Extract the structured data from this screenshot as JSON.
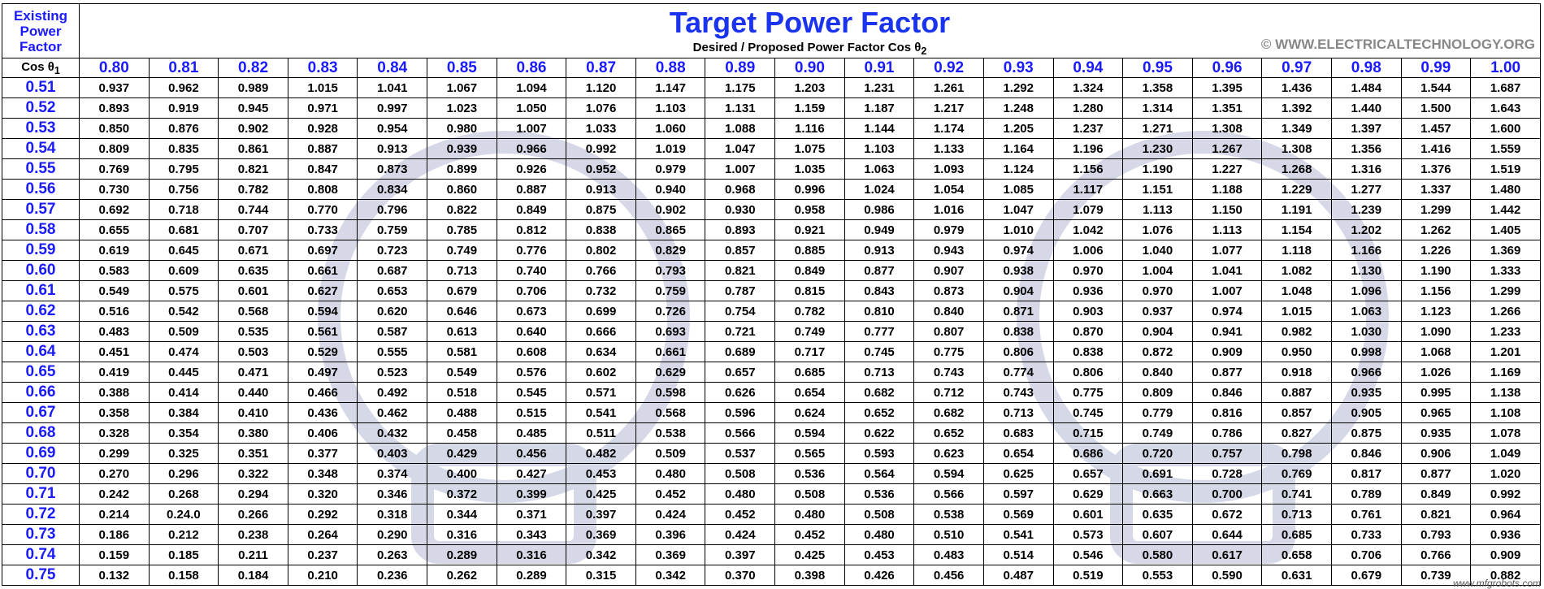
{
  "header": {
    "existing_label": "Existing Power Factor",
    "cos_label": "Cos θ",
    "cos_sub": "1",
    "title": "Target Power Factor",
    "subtitle": "Desired / Proposed Power Factor Cos θ",
    "subtitle_sub": "2",
    "copyright": "© WWW.ELECTRICALTECHNOLOGY.ORG"
  },
  "watermark": "www.mfgrobots.com",
  "table": {
    "columns": [
      "0.80",
      "0.81",
      "0.82",
      "0.83",
      "0.84",
      "0.85",
      "0.86",
      "0.87",
      "0.88",
      "0.89",
      "0.90",
      "0.91",
      "0.92",
      "0.93",
      "0.94",
      "0.95",
      "0.96",
      "0.97",
      "0.98",
      "0.99",
      "1.00"
    ],
    "row_headers": [
      "0.51",
      "0.52",
      "0.53",
      "0.54",
      "0.55",
      "0.56",
      "0.57",
      "0.58",
      "0.59",
      "0.60",
      "0.61",
      "0.62",
      "0.63",
      "0.64",
      "0.65",
      "0.66",
      "0.67",
      "0.68",
      "0.69",
      "0.70",
      "0.71",
      "0.72",
      "0.73",
      "0.74",
      "0.75"
    ],
    "rows": [
      [
        "0.937",
        "0.962",
        "0.989",
        "1.015",
        "1.041",
        "1.067",
        "1.094",
        "1.120",
        "1.147",
        "1.175",
        "1.203",
        "1.231",
        "1.261",
        "1.292",
        "1.324",
        "1.358",
        "1.395",
        "1.436",
        "1.484",
        "1.544",
        "1.687"
      ],
      [
        "0.893",
        "0.919",
        "0.945",
        "0.971",
        "0.997",
        "1.023",
        "1.050",
        "1.076",
        "1.103",
        "1.131",
        "1.159",
        "1.187",
        "1.217",
        "1.248",
        "1.280",
        "1.314",
        "1.351",
        "1.392",
        "1.440",
        "1.500",
        "1.643"
      ],
      [
        "0.850",
        "0.876",
        "0.902",
        "0.928",
        "0.954",
        "0.980",
        "1.007",
        "1.033",
        "1.060",
        "1.088",
        "1.116",
        "1.144",
        "1.174",
        "1.205",
        "1.237",
        "1.271",
        "1.308",
        "1.349",
        "1.397",
        "1.457",
        "1.600"
      ],
      [
        "0.809",
        "0.835",
        "0.861",
        "0.887",
        "0.913",
        "0.939",
        "0.966",
        "0.992",
        "1.019",
        "1.047",
        "1.075",
        "1.103",
        "1.133",
        "1.164",
        "1.196",
        "1.230",
        "1.267",
        "1.308",
        "1.356",
        "1.416",
        "1.559"
      ],
      [
        "0.769",
        "0.795",
        "0.821",
        "0.847",
        "0.873",
        "0.899",
        "0.926",
        "0.952",
        "0.979",
        "1.007",
        "1.035",
        "1.063",
        "1.093",
        "1.124",
        "1.156",
        "1.190",
        "1.227",
        "1.268",
        "1.316",
        "1.376",
        "1.519"
      ],
      [
        "0.730",
        "0.756",
        "0.782",
        "0.808",
        "0.834",
        "0.860",
        "0.887",
        "0.913",
        "0.940",
        "0.968",
        "0.996",
        "1.024",
        "1.054",
        "1.085",
        "1.117",
        "1.151",
        "1.188",
        "1.229",
        "1.277",
        "1.337",
        "1.480"
      ],
      [
        "0.692",
        "0.718",
        "0.744",
        "0.770",
        "0.796",
        "0.822",
        "0.849",
        "0.875",
        "0.902",
        "0.930",
        "0.958",
        "0.986",
        "1.016",
        "1.047",
        "1.079",
        "1.113",
        "1.150",
        "1.191",
        "1.239",
        "1.299",
        "1.442"
      ],
      [
        "0.655",
        "0.681",
        "0.707",
        "0.733",
        "0.759",
        "0.785",
        "0.812",
        "0.838",
        "0.865",
        "0.893",
        "0.921",
        "0.949",
        "0.979",
        "1.010",
        "1.042",
        "1.076",
        "1.113",
        "1.154",
        "1.202",
        "1.262",
        "1.405"
      ],
      [
        "0.619",
        "0.645",
        "0.671",
        "0.697",
        "0.723",
        "0.749",
        "0.776",
        "0.802",
        "0.829",
        "0.857",
        "0.885",
        "0.913",
        "0.943",
        "0.974",
        "1.006",
        "1.040",
        "1.077",
        "1.118",
        "1.166",
        "1.226",
        "1.369"
      ],
      [
        "0.583",
        "0.609",
        "0.635",
        "0.661",
        "0.687",
        "0.713",
        "0.740",
        "0.766",
        "0.793",
        "0.821",
        "0.849",
        "0.877",
        "0.907",
        "0.938",
        "0.970",
        "1.004",
        "1.041",
        "1.082",
        "1.130",
        "1.190",
        "1.333"
      ],
      [
        "0.549",
        "0.575",
        "0.601",
        "0.627",
        "0.653",
        "0.679",
        "0.706",
        "0.732",
        "0.759",
        "0.787",
        "0.815",
        "0.843",
        "0.873",
        "0.904",
        "0.936",
        "0.970",
        "1.007",
        "1.048",
        "1.096",
        "1.156",
        "1.299"
      ],
      [
        "0.516",
        "0.542",
        "0.568",
        "0.594",
        "0.620",
        "0.646",
        "0.673",
        "0.699",
        "0.726",
        "0.754",
        "0.782",
        "0.810",
        "0.840",
        "0.871",
        "0.903",
        "0.937",
        "0.974",
        "1.015",
        "1.063",
        "1.123",
        "1.266"
      ],
      [
        "0.483",
        "0.509",
        "0.535",
        "0.561",
        "0.587",
        "0.613",
        "0.640",
        "0.666",
        "0.693",
        "0.721",
        "0.749",
        "0.777",
        "0.807",
        "0.838",
        "0.870",
        "0.904",
        "0.941",
        "0.982",
        "1.030",
        "1.090",
        "1.233"
      ],
      [
        "0.451",
        "0.474",
        "0.503",
        "0.529",
        "0.555",
        "0.581",
        "0.608",
        "0.634",
        "0.661",
        "0.689",
        "0.717",
        "0.745",
        "0.775",
        "0.806",
        "0.838",
        "0.872",
        "0.909",
        "0.950",
        "0.998",
        "1.068",
        "1.201"
      ],
      [
        "0.419",
        "0.445",
        "0.471",
        "0.497",
        "0.523",
        "0.549",
        "0.576",
        "0.602",
        "0.629",
        "0.657",
        "0.685",
        "0.713",
        "0.743",
        "0.774",
        "0.806",
        "0.840",
        "0.877",
        "0.918",
        "0.966",
        "1.026",
        "1.169"
      ],
      [
        "0.388",
        "0.414",
        "0.440",
        "0.466",
        "0.492",
        "0.518",
        "0.545",
        "0.571",
        "0.598",
        "0.626",
        "0.654",
        "0.682",
        "0.712",
        "0.743",
        "0.775",
        "0.809",
        "0.846",
        "0.887",
        "0.935",
        "0.995",
        "1.138"
      ],
      [
        "0.358",
        "0.384",
        "0.410",
        "0.436",
        "0.462",
        "0.488",
        "0.515",
        "0.541",
        "0.568",
        "0.596",
        "0.624",
        "0.652",
        "0.682",
        "0.713",
        "0.745",
        "0.779",
        "0.816",
        "0.857",
        "0.905",
        "0.965",
        "1.108"
      ],
      [
        "0.328",
        "0.354",
        "0.380",
        "0.406",
        "0.432",
        "0.458",
        "0.485",
        "0.511",
        "0.538",
        "0.566",
        "0.594",
        "0.622",
        "0.652",
        "0.683",
        "0.715",
        "0.749",
        "0.786",
        "0.827",
        "0.875",
        "0.935",
        "1.078"
      ],
      [
        "0.299",
        "0.325",
        "0.351",
        "0.377",
        "0.403",
        "0.429",
        "0.456",
        "0.482",
        "0.509",
        "0.537",
        "0.565",
        "0.593",
        "0.623",
        "0.654",
        "0.686",
        "0.720",
        "0.757",
        "0.798",
        "0.846",
        "0.906",
        "1.049"
      ],
      [
        "0.270",
        "0.296",
        "0.322",
        "0.348",
        "0.374",
        "0.400",
        "0.427",
        "0.453",
        "0.480",
        "0.508",
        "0.536",
        "0.564",
        "0.594",
        "0.625",
        "0.657",
        "0.691",
        "0.728",
        "0.769",
        "0.817",
        "0.877",
        "1.020"
      ],
      [
        "0.242",
        "0.268",
        "0.294",
        "0.320",
        "0.346",
        "0.372",
        "0.399",
        "0.425",
        "0.452",
        "0.480",
        "0.508",
        "0.536",
        "0.566",
        "0.597",
        "0.629",
        "0.663",
        "0.700",
        "0.741",
        "0.789",
        "0.849",
        "0.992"
      ],
      [
        "0.214",
        "0.24.0",
        "0.266",
        "0.292",
        "0.318",
        "0.344",
        "0.371",
        "0.397",
        "0.424",
        "0.452",
        "0.480",
        "0.508",
        "0.538",
        "0.569",
        "0.601",
        "0.635",
        "0.672",
        "0.713",
        "0.761",
        "0.821",
        "0.964"
      ],
      [
        "0.186",
        "0.212",
        "0.238",
        "0.264",
        "0.290",
        "0.316",
        "0.343",
        "0.369",
        "0.396",
        "0.424",
        "0.452",
        "0.480",
        "0.510",
        "0.541",
        "0.573",
        "0.607",
        "0.644",
        "0.685",
        "0.733",
        "0.793",
        "0.936"
      ],
      [
        "0.159",
        "0.185",
        "0.211",
        "0.237",
        "0.263",
        "0.289",
        "0.316",
        "0.342",
        "0.369",
        "0.397",
        "0.425",
        "0.453",
        "0.483",
        "0.514",
        "0.546",
        "0.580",
        "0.617",
        "0.658",
        "0.706",
        "0.766",
        "0.909"
      ],
      [
        "0.132",
        "0.158",
        "0.184",
        "0.210",
        "0.236",
        "0.262",
        "0.289",
        "0.315",
        "0.342",
        "0.370",
        "0.398",
        "0.426",
        "0.456",
        "0.487",
        "0.519",
        "0.553",
        "0.590",
        "0.631",
        "0.679",
        "0.739",
        "0.882"
      ]
    ]
  }
}
